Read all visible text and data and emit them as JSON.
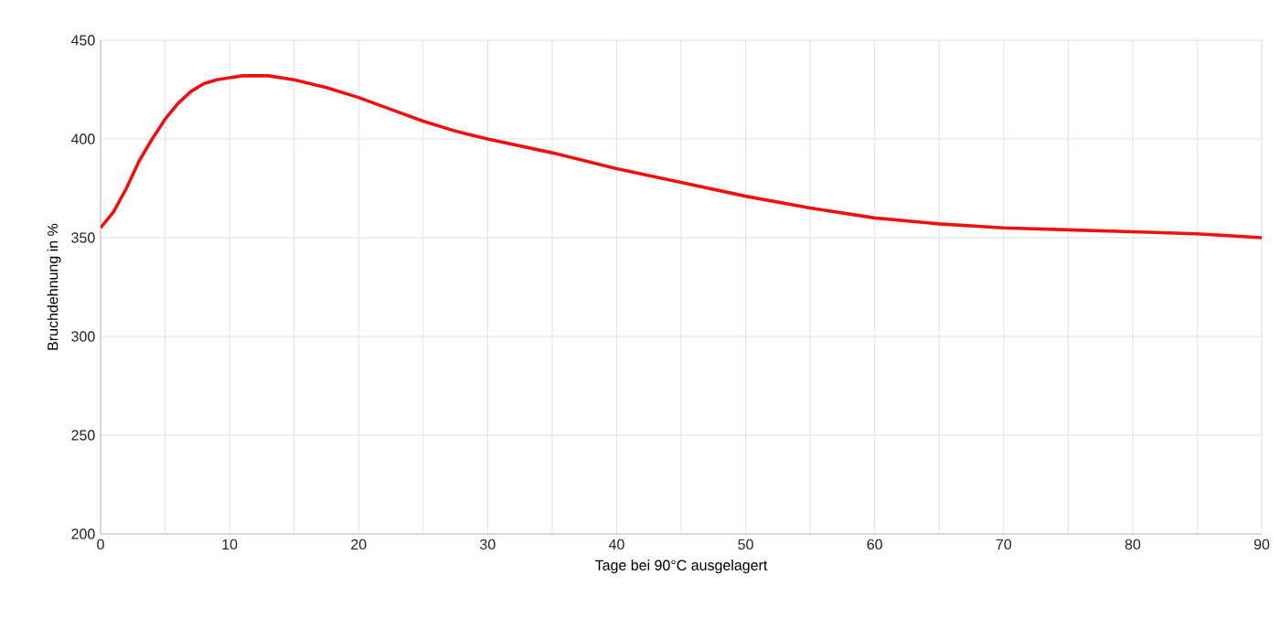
{
  "chart_data": {
    "type": "line",
    "xlabel": "Tage bei 90°C ausgelagert",
    "ylabel": "Bruchdehnung in %",
    "x": [
      0,
      1,
      2,
      3,
      4,
      5,
      6,
      7,
      8,
      9,
      10,
      11,
      12,
      13,
      15,
      17.5,
      20,
      22.5,
      25,
      27.5,
      30,
      35,
      40,
      45,
      50,
      55,
      60,
      65,
      70,
      75,
      80,
      85,
      90
    ],
    "series": [
      {
        "color": "#ee1111",
        "values": [
          355,
          363,
          375,
          389,
          400,
          410,
          418,
          424,
          428,
          430,
          431,
          432,
          432,
          432,
          430,
          426,
          421,
          415,
          409,
          404,
          400,
          393,
          385,
          378,
          371,
          365,
          360,
          357,
          355,
          354,
          353,
          352,
          350
        ]
      }
    ],
    "xlim": [
      0,
      90
    ],
    "xticks": [
      0,
      10,
      20,
      30,
      40,
      50,
      60,
      70,
      80,
      90
    ],
    "ylim": [
      200,
      450
    ],
    "yticks": [
      200,
      250,
      300,
      350,
      400,
      450
    ],
    "grid": true,
    "marker": "none",
    "line_style": "solid"
  }
}
